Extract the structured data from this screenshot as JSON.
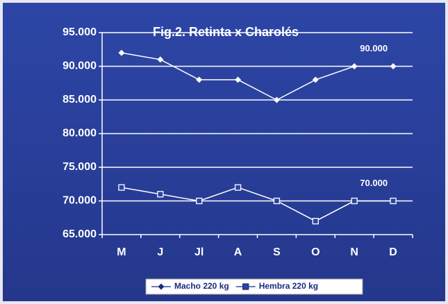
{
  "chart_data": {
    "type": "line",
    "title": "Fig.2. Retinta x Charolés",
    "categories": [
      "M",
      "J",
      "Jl",
      "A",
      "S",
      "O",
      "N",
      "D"
    ],
    "series": [
      {
        "name": "Macho 220 kg",
        "color": "#ffffff",
        "marker": "diamond",
        "values": [
          92000,
          91000,
          88000,
          88000,
          85000,
          88000,
          90000,
          90000
        ]
      },
      {
        "name": "Hembra 220 kg",
        "color": "#ffffff",
        "marker": "square",
        "values": [
          72000,
          71000,
          70000,
          72000,
          70000,
          67000,
          70000,
          70000
        ]
      }
    ],
    "annotations": [
      "90.000",
      "70.000"
    ],
    "ylim": [
      65000,
      95000
    ],
    "yticks": [
      {
        "value": 65000,
        "label": "65.000"
      },
      {
        "value": 70000,
        "label": "70.000"
      },
      {
        "value": 75000,
        "label": "75.000"
      },
      {
        "value": 80000,
        "label": "80.000"
      },
      {
        "value": 85000,
        "label": "85.000"
      },
      {
        "value": 90000,
        "label": "90.000"
      },
      {
        "value": 95000,
        "label": "95.000"
      }
    ],
    "grid": true,
    "legend": "bottom"
  }
}
